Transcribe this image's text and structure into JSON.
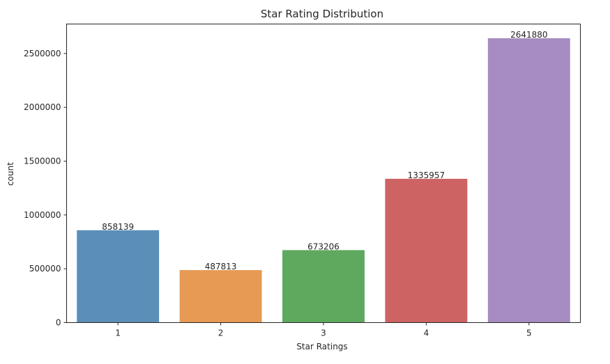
{
  "chart_data": {
    "type": "bar",
    "title": "Star Rating Distribution",
    "xlabel": "Star Ratings",
    "ylabel": "count",
    "categories": [
      "1",
      "2",
      "3",
      "4",
      "5"
    ],
    "values": [
      858139,
      487813,
      673206,
      1335957,
      2641880
    ],
    "data_labels": [
      "858139",
      "487813",
      "673206",
      "1335957",
      "2641880"
    ],
    "colors": [
      "#5b8fb9",
      "#e69a54",
      "#5fa95f",
      "#cd6363",
      "#a68cc0"
    ],
    "yticks": [
      0,
      500000,
      1000000,
      1500000,
      2000000,
      2500000
    ],
    "ytick_labels": [
      "0",
      "500000",
      "1000000",
      "1500000",
      "2000000",
      "2500000"
    ],
    "ylim": [
      0,
      2773974
    ],
    "grid": false,
    "legend": "none"
  }
}
